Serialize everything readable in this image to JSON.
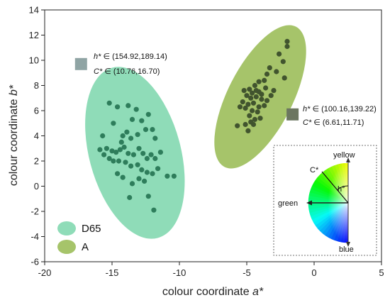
{
  "chart_data": {
    "type": "scatter",
    "xlabel_main": "colour coordinate ",
    "xlabel_var": "a*",
    "ylabel_main": "colour coordinate ",
    "ylabel_var": "b*",
    "xlim": [
      -20,
      5
    ],
    "ylim": [
      -6,
      14
    ],
    "xticks": [
      -20,
      -15,
      -10,
      -5,
      0,
      5
    ],
    "yticks": [
      -6,
      -4,
      -2,
      0,
      2,
      4,
      6,
      8,
      10,
      12,
      14
    ],
    "series": [
      {
        "name": "D65",
        "color": "#2e7d5b",
        "ellipse_color": "#8fdcb8",
        "ellipse": {
          "cx": -13.3,
          "cy": 2.65,
          "rx": 3.4,
          "ry": 7.0,
          "angle_deg": -15
        },
        "points": [
          [
            -15.2,
            6.6
          ],
          [
            -14.6,
            6.3
          ],
          [
            -13.8,
            6.4
          ],
          [
            -13.2,
            6.1
          ],
          [
            -12.3,
            5.7
          ],
          [
            -14.9,
            5.0
          ],
          [
            -13.5,
            5.3
          ],
          [
            -12.8,
            5.2
          ],
          [
            -15.7,
            4.0
          ],
          [
            -14.2,
            4.0
          ],
          [
            -13.9,
            4.3
          ],
          [
            -13.6,
            3.8
          ],
          [
            -13.1,
            4.1
          ],
          [
            -12.5,
            4.5
          ],
          [
            -12.0,
            4.5
          ],
          [
            -11.8,
            3.8
          ],
          [
            -15.4,
            3.0
          ],
          [
            -15.0,
            2.8
          ],
          [
            -14.7,
            2.7
          ],
          [
            -14.4,
            2.9
          ],
          [
            -14.1,
            3.1
          ],
          [
            -13.8,
            2.6
          ],
          [
            -13.4,
            2.5
          ],
          [
            -13.0,
            3.0
          ],
          [
            -12.7,
            2.6
          ],
          [
            -12.4,
            2.2
          ],
          [
            -12.1,
            2.5
          ],
          [
            -11.8,
            2.2
          ],
          [
            -11.4,
            2.7
          ],
          [
            -15.6,
            2.5
          ],
          [
            -15.2,
            2.2
          ],
          [
            -14.9,
            2.0
          ],
          [
            -14.5,
            2.0
          ],
          [
            -14.0,
            1.9
          ],
          [
            -13.6,
            1.6
          ],
          [
            -13.1,
            1.7
          ],
          [
            -12.8,
            1.3
          ],
          [
            -12.4,
            1.1
          ],
          [
            -12.0,
            1.0
          ],
          [
            -11.6,
            1.4
          ],
          [
            -10.9,
            0.8
          ],
          [
            -10.4,
            0.8
          ],
          [
            -14.6,
            1.0
          ],
          [
            -14.2,
            0.7
          ],
          [
            -13.5,
            0.2
          ],
          [
            -13.0,
            0.6
          ],
          [
            -12.6,
            0.4
          ],
          [
            -13.7,
            -0.9
          ],
          [
            -12.3,
            -0.8
          ],
          [
            -11.9,
            -1.9
          ],
          [
            -15.9,
            2.9
          ],
          [
            -14.3,
            3.5
          ]
        ]
      },
      {
        "name": "A",
        "color": "#41542e",
        "ellipse_color": "#a6c46a",
        "ellipse": {
          "cx": -4.0,
          "cy": 7.1,
          "rx": 2.4,
          "ry": 6.25,
          "angle_deg": 27
        },
        "points": [
          [
            -2.0,
            11.5
          ],
          [
            -2.0,
            11.1
          ],
          [
            -2.6,
            10.5
          ],
          [
            -2.3,
            9.9
          ],
          [
            -3.3,
            9.4
          ],
          [
            -2.8,
            9.1
          ],
          [
            -2.2,
            8.6
          ],
          [
            -3.5,
            8.9
          ],
          [
            -3.7,
            8.4
          ],
          [
            -4.1,
            8.3
          ],
          [
            -4.4,
            8.0
          ],
          [
            -4.8,
            7.7
          ],
          [
            -5.2,
            7.6
          ],
          [
            -4.6,
            7.4
          ],
          [
            -4.1,
            7.5
          ],
          [
            -3.6,
            7.8
          ],
          [
            -3.2,
            7.2
          ],
          [
            -3.0,
            7.6
          ],
          [
            -5.0,
            7.2
          ],
          [
            -4.7,
            7.0
          ],
          [
            -4.3,
            7.1
          ],
          [
            -3.9,
            6.9
          ],
          [
            -3.5,
            6.8
          ],
          [
            -5.3,
            6.7
          ],
          [
            -4.9,
            6.5
          ],
          [
            -4.5,
            6.6
          ],
          [
            -4.1,
            6.3
          ],
          [
            -3.7,
            6.4
          ],
          [
            -5.1,
            6.2
          ],
          [
            -4.6,
            6.0
          ],
          [
            -4.2,
            5.9
          ],
          [
            -5.5,
            6.3
          ],
          [
            -4.8,
            5.6
          ],
          [
            -4.4,
            5.3
          ],
          [
            -4.0,
            5.4
          ],
          [
            -4.5,
            4.9
          ],
          [
            -5.1,
            4.9
          ],
          [
            -4.9,
            4.4
          ],
          [
            -5.7,
            4.8
          ],
          [
            -4.7,
            5.1
          ],
          [
            -3.9,
            7.3
          ],
          [
            -4.3,
            7.6
          ]
        ]
      }
    ],
    "annotations": [
      {
        "id": "d65",
        "marker_color": "#8fa4a4",
        "marker_pos": [
          -17.3,
          9.7
        ],
        "line1_var": "h*",
        "line1_val": " ∈ (154.92,189.14)",
        "line2_var": "C*",
        "line2_val": " ∈ (10.76,16.70)"
      },
      {
        "id": "a",
        "marker_color": "#6c7660",
        "marker_pos": [
          -1.6,
          5.7
        ],
        "line1_var": "h*",
        "line1_val": " ∈ (100.16,139.22)",
        "line2_var": "C*",
        "line2_val": " ∈ (6.61,11.71)"
      }
    ],
    "legend": {
      "placement": "lower-left",
      "entries": [
        {
          "label": "D65",
          "color": "#8fdcb8"
        },
        {
          "label": "A",
          "color": "#a6c46a"
        }
      ]
    },
    "inset": {
      "labels": {
        "yellow": "yellow",
        "green": "green",
        "blue": "blue",
        "chroma": "C*",
        "hue": "h°"
      }
    }
  }
}
